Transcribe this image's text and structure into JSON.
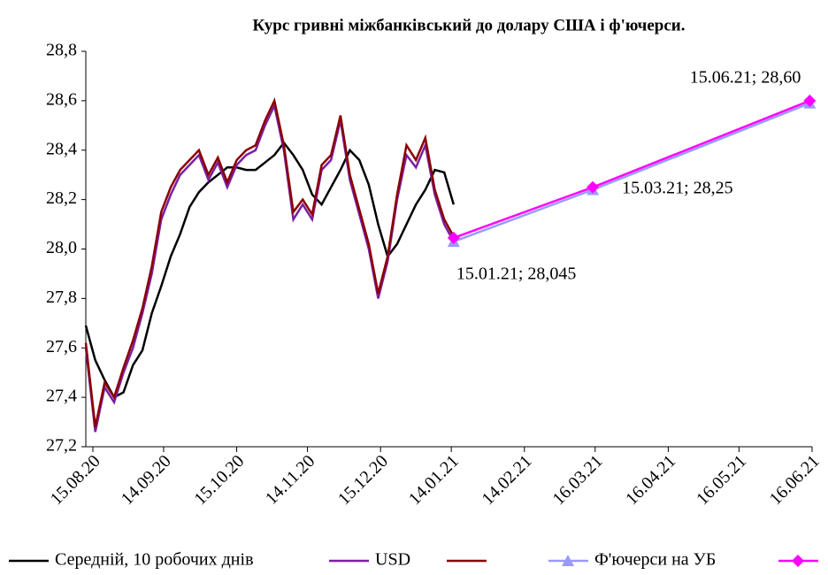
{
  "chart_data": {
    "type": "line",
    "title": "Курс гривні міжбанківський до долару США і ф'ючерси.",
    "date_format": "dd.mm.yy",
    "xlim": [
      "12.08.20",
      "16.06.21"
    ],
    "xticks": [
      "15.08.20",
      "14.09.20",
      "15.10.20",
      "14.11.20",
      "15.12.20",
      "14.01.21",
      "14.02.21",
      "16.03.21",
      "16.04.21",
      "16.05.21",
      "16.06.21"
    ],
    "ylim": [
      27.2,
      28.8
    ],
    "yticks": [
      {
        "value": 27.2,
        "label": "27,2"
      },
      {
        "value": 27.4,
        "label": "27,4"
      },
      {
        "value": 27.6,
        "label": "27,6"
      },
      {
        "value": 27.8,
        "label": "27,8"
      },
      {
        "value": 28.0,
        "label": "28,0"
      },
      {
        "value": 28.2,
        "label": "28,2"
      },
      {
        "value": 28.4,
        "label": "28,4"
      },
      {
        "value": 28.6,
        "label": "28,6"
      },
      {
        "value": 28.8,
        "label": "28,8"
      }
    ],
    "grid": false,
    "legend": "bottom",
    "x": [
      "12.08.20",
      "16.08.20",
      "20.08.20",
      "24.08.20",
      "28.08.20",
      "01.09.20",
      "05.09.20",
      "09.09.20",
      "13.09.20",
      "17.09.20",
      "21.09.20",
      "25.09.20",
      "29.09.20",
      "03.10.20",
      "07.10.20",
      "11.10.20",
      "15.10.20",
      "19.10.20",
      "23.10.20",
      "27.10.20",
      "31.10.20",
      "04.11.20",
      "08.11.20",
      "12.11.20",
      "16.11.20",
      "20.11.20",
      "24.11.20",
      "28.11.20",
      "02.12.20",
      "06.12.20",
      "10.12.20",
      "14.12.20",
      "18.12.20",
      "22.12.20",
      "26.12.20",
      "30.12.20",
      "03.01.21",
      "07.01.21",
      "11.01.21",
      "15.01.21"
    ],
    "series": [
      {
        "name": "Середній, 10 робочих днів",
        "color": "#000000",
        "values": [
          27.69,
          27.55,
          27.47,
          27.4,
          27.42,
          27.53,
          27.59,
          27.74,
          27.85,
          27.97,
          28.06,
          28.17,
          28.23,
          28.27,
          28.3,
          28.33,
          28.33,
          28.32,
          28.32,
          28.35,
          28.38,
          28.43,
          28.38,
          28.32,
          28.22,
          28.18,
          28.25,
          28.32,
          28.4,
          28.36,
          28.26,
          28.1,
          27.97,
          28.02,
          28.1,
          28.18,
          28.24,
          28.32,
          28.31,
          28.18
        ]
      },
      {
        "name": "USD",
        "color": "#7b1fa2",
        "values": [
          27.6,
          27.26,
          27.44,
          27.38,
          27.5,
          27.6,
          27.74,
          27.9,
          28.12,
          28.22,
          28.3,
          28.34,
          28.38,
          28.28,
          28.35,
          28.25,
          28.34,
          28.38,
          28.4,
          28.5,
          28.58,
          28.4,
          28.12,
          28.18,
          28.12,
          28.32,
          28.36,
          28.52,
          28.28,
          28.14,
          28.0,
          27.8,
          27.95,
          28.2,
          28.38,
          28.33,
          28.42,
          28.22,
          28.1,
          28.03
        ]
      },
      {
        "color": "#8b0000",
        "values": [
          27.62,
          27.28,
          27.46,
          27.4,
          27.52,
          27.63,
          27.76,
          27.93,
          28.15,
          28.25,
          28.32,
          28.36,
          28.4,
          28.3,
          28.37,
          28.27,
          28.36,
          28.4,
          28.42,
          28.52,
          28.6,
          28.42,
          28.15,
          28.2,
          28.14,
          28.34,
          28.38,
          28.54,
          28.3,
          28.16,
          28.02,
          27.82,
          27.97,
          28.22,
          28.42,
          28.36,
          28.45,
          28.24,
          28.12,
          28.05
        ]
      },
      {
        "name": "Ф'ючерси на УБ",
        "color": "#9999ff",
        "marker": "triangle",
        "x": [
          "15.01.21",
          "15.03.21",
          "15.06.21"
        ],
        "values": [
          28.03,
          28.24,
          28.59
        ]
      },
      {
        "color": "#ff00ff",
        "marker": "diamond",
        "x": [
          "15.01.21",
          "15.03.21",
          "15.06.21"
        ],
        "values": [
          28.045,
          28.25,
          28.6
        ],
        "value_labels": [
          "15.01.21; 28,045",
          "15.03.21; 28,25",
          "15.06.21; 28,60"
        ]
      }
    ]
  }
}
